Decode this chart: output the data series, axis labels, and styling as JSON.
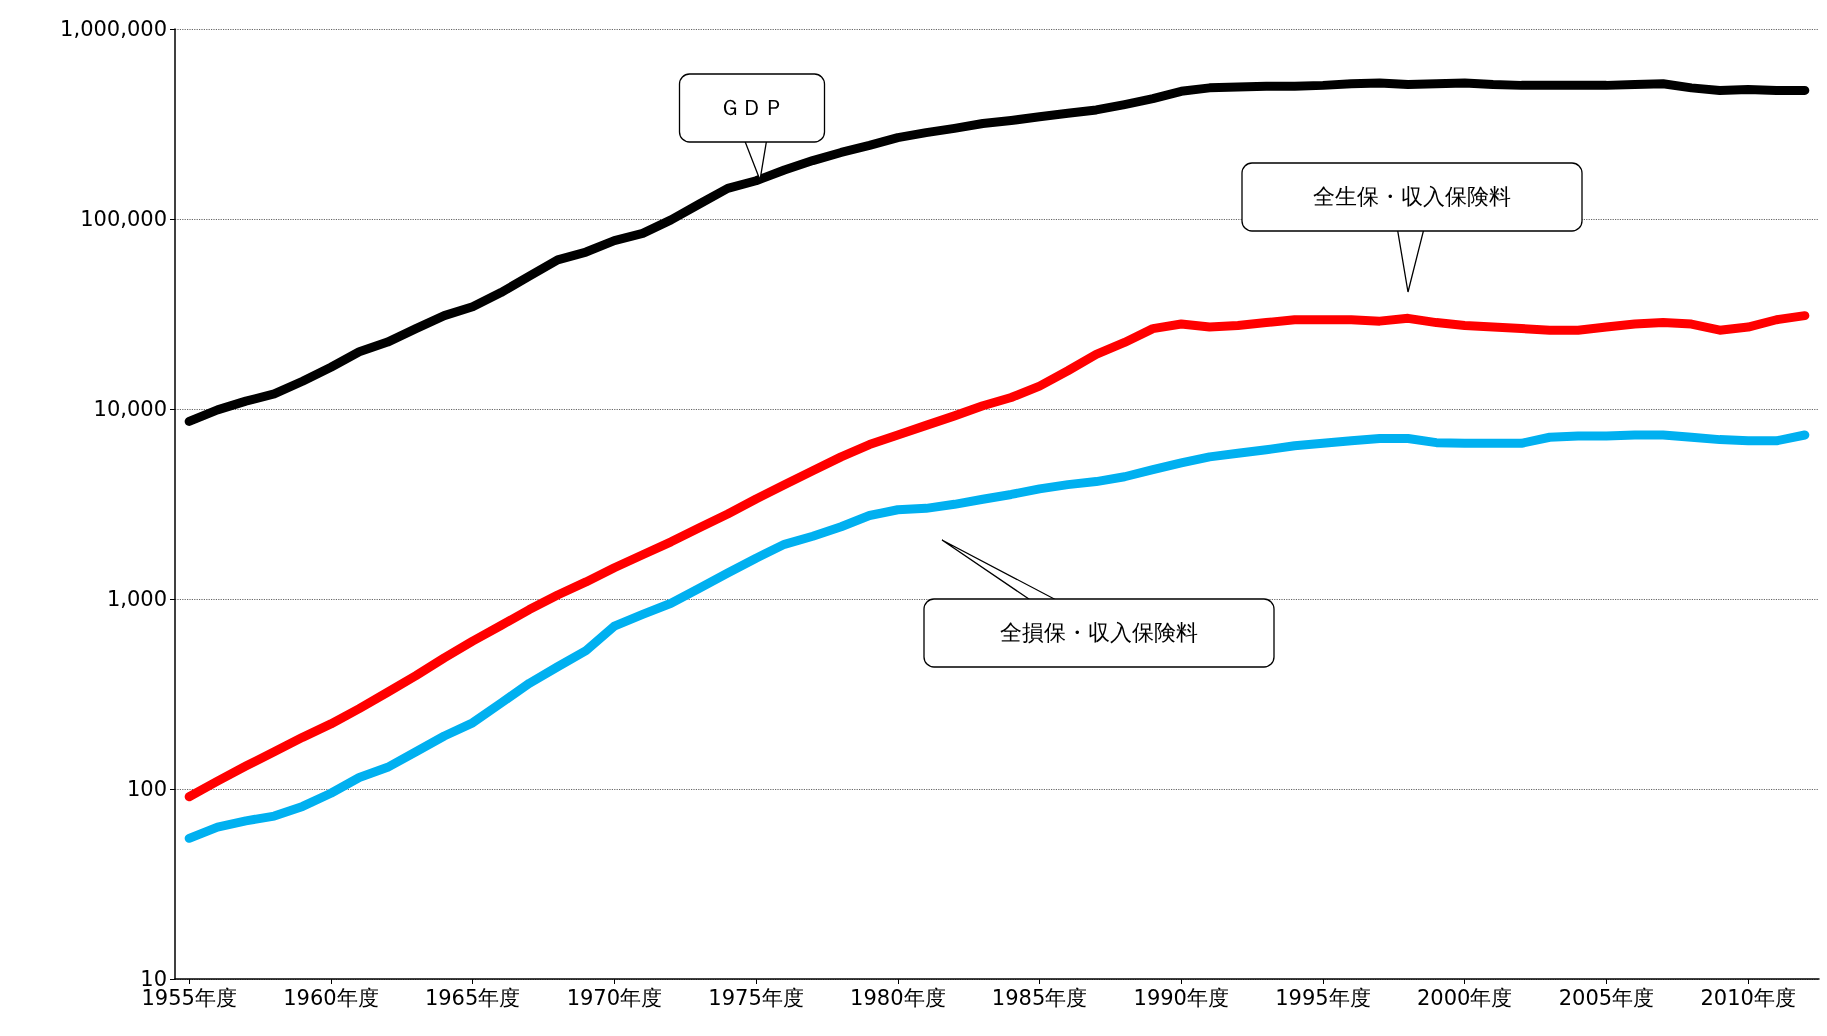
{
  "chart_data": {
    "type": "line",
    "x": [
      1955,
      1956,
      1957,
      1958,
      1959,
      1960,
      1961,
      1962,
      1963,
      1964,
      1965,
      1966,
      1967,
      1968,
      1969,
      1970,
      1971,
      1972,
      1973,
      1974,
      1975,
      1976,
      1977,
      1978,
      1979,
      1980,
      1981,
      1982,
      1983,
      1984,
      1985,
      1986,
      1987,
      1988,
      1989,
      1990,
      1991,
      1992,
      1993,
      1994,
      1995,
      1996,
      1997,
      1998,
      1999,
      2000,
      2001,
      2002,
      2003,
      2004,
      2005,
      2006,
      2007,
      2008,
      2009,
      2010,
      2011,
      2012
    ],
    "series": [
      {
        "color": "#000000",
        "values": [
          8600,
          9900,
          11000,
          12000,
          14000,
          16600,
          20000,
          22500,
          26500,
          31000,
          34500,
          41000,
          50000,
          61000,
          67000,
          77000,
          84000,
          99000,
          120000,
          145000,
          159000,
          181000,
          203000,
          224000,
          244000,
          268000,
          285000,
          300000,
          318000,
          330000,
          345000,
          360000,
          375000,
          400000,
          430000,
          470000,
          490000,
          495000,
          500000,
          500000,
          505000,
          515000,
          520000,
          510000,
          515000,
          520000,
          510000,
          505000,
          505000,
          505000,
          505000,
          510000,
          515000,
          490000,
          475000,
          480000,
          475000,
          475000
        ]
      },
      {
        "color": "#ff0000",
        "values": [
          91,
          110,
          132,
          157,
          187,
          220,
          265,
          323,
          395,
          490,
          600,
          725,
          880,
          1050,
          1230,
          1460,
          1710,
          2000,
          2370,
          2800,
          3360,
          3990,
          4730,
          5600,
          6500,
          7300,
          8200,
          9200,
          10400,
          11500,
          13200,
          15900,
          19400,
          22400,
          26500,
          28000,
          27000,
          27500,
          28500,
          29500,
          29500,
          29500,
          29000,
          30000,
          28500,
          27500,
          27000,
          26500,
          26000,
          26000,
          27000,
          28000,
          28500,
          28000,
          26000,
          27000,
          29500,
          31000
        ]
      },
      {
        "color": "#00b0f0",
        "values": [
          55,
          63,
          68,
          72,
          81,
          95,
          115,
          130,
          157,
          190,
          223,
          283,
          360,
          440,
          535,
          720,
          830,
          950,
          1140,
          1370,
          1640,
          1940,
          2140,
          2400,
          2750,
          2950,
          3000,
          3150,
          3350,
          3550,
          3800,
          4000,
          4150,
          4400,
          4800,
          5200,
          5600,
          5850,
          6100,
          6400,
          6600,
          6800,
          7000,
          7000,
          6650,
          6600,
          6600,
          6600,
          7100,
          7200,
          7200,
          7300,
          7300,
          7100,
          6900,
          6800,
          6800,
          7300
        ]
      }
    ],
    "log": "y",
    "xlim": [
      1954.5,
      2012.5
    ],
    "xticks": [
      {
        "value": 1955,
        "label": "1955年度"
      },
      {
        "value": 1960,
        "label": "1960年度"
      },
      {
        "value": 1965,
        "label": "1965年度"
      },
      {
        "value": 1970,
        "label": "1970年度"
      },
      {
        "value": 1975,
        "label": "1975年度"
      },
      {
        "value": 1980,
        "label": "1980年度"
      },
      {
        "value": 1985,
        "label": "1985年度"
      },
      {
        "value": 1990,
        "label": "1990年度"
      },
      {
        "value": 1995,
        "label": "1995年度"
      },
      {
        "value": 2000,
        "label": "2000年度"
      },
      {
        "value": 2005,
        "label": "2005年度"
      },
      {
        "value": 2010,
        "label": "2010年度"
      }
    ],
    "ylim": [
      10,
      1000000
    ],
    "yticks": [
      10,
      100,
      {
        "value": 1000,
        "label": "1,000"
      },
      {
        "value": 10000,
        "label": "10,000"
      },
      {
        "value": 100000,
        "label": "100,000"
      },
      {
        "value": 1000000,
        "label": "1,000,000"
      }
    ],
    "grid": "y",
    "marker": "none",
    "annotations": [
      "ＧＤＰ",
      "全生保・収入保険料",
      "全損保・収入保険料"
    ]
  }
}
